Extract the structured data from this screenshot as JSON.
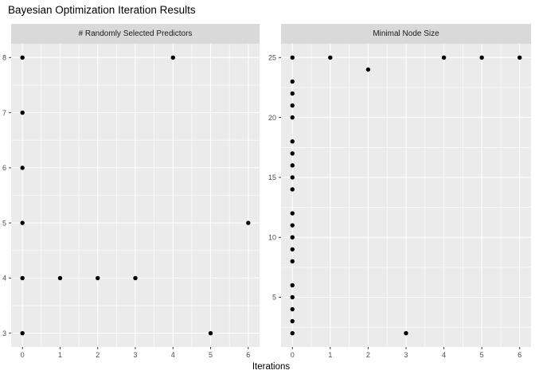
{
  "title": "Bayesian Optimization Iteration Results",
  "xlabel": "Iterations",
  "colors": {
    "panel_bg": "#EBEBEB",
    "strip_bg": "#D9D9D9",
    "grid_major": "#FFFFFF",
    "grid_minor": "#FFFFFF",
    "point": "#000000",
    "tick_label": "#4D4D4D",
    "tick_mark": "#333333",
    "title_text": "#000000"
  },
  "chart_data": [
    {
      "type": "scatter",
      "facet_label": "# Randomly Selected Predictors",
      "xlabel": "Iterations",
      "ylabel": "",
      "x_ticks": [
        0,
        1,
        2,
        3,
        4,
        5,
        6
      ],
      "y_ticks": [
        3,
        4,
        5,
        6,
        7,
        8
      ],
      "xlim": [
        -0.3,
        6.3
      ],
      "ylim": [
        2.75,
        8.25
      ],
      "grid": true,
      "legend": "none",
      "points": [
        [
          0,
          3
        ],
        [
          0,
          4
        ],
        [
          0,
          5
        ],
        [
          0,
          6
        ],
        [
          0,
          7
        ],
        [
          0,
          8
        ],
        [
          1,
          4
        ],
        [
          2,
          4
        ],
        [
          3,
          4
        ],
        [
          4,
          8
        ],
        [
          5,
          3
        ],
        [
          6,
          5
        ]
      ]
    },
    {
      "type": "scatter",
      "facet_label": "Minimal Node Size",
      "xlabel": "Iterations",
      "ylabel": "",
      "x_ticks": [
        0,
        1,
        2,
        3,
        4,
        5,
        6
      ],
      "y_ticks": [
        5,
        10,
        15,
        20,
        25
      ],
      "xlim": [
        -0.3,
        6.3
      ],
      "ylim": [
        0.85,
        26.15
      ],
      "grid": true,
      "legend": "none",
      "points": [
        [
          0,
          2
        ],
        [
          0,
          3
        ],
        [
          0,
          4
        ],
        [
          0,
          5
        ],
        [
          0,
          6
        ],
        [
          0,
          8
        ],
        [
          0,
          9
        ],
        [
          0,
          10
        ],
        [
          0,
          11
        ],
        [
          0,
          12
        ],
        [
          0,
          14
        ],
        [
          0,
          15
        ],
        [
          0,
          16
        ],
        [
          0,
          17
        ],
        [
          0,
          18
        ],
        [
          0,
          20
        ],
        [
          0,
          21
        ],
        [
          0,
          22
        ],
        [
          0,
          23
        ],
        [
          0,
          25
        ],
        [
          1,
          25
        ],
        [
          2,
          24
        ],
        [
          3,
          2
        ],
        [
          4,
          25
        ],
        [
          5,
          25
        ],
        [
          6,
          25
        ]
      ]
    }
  ]
}
